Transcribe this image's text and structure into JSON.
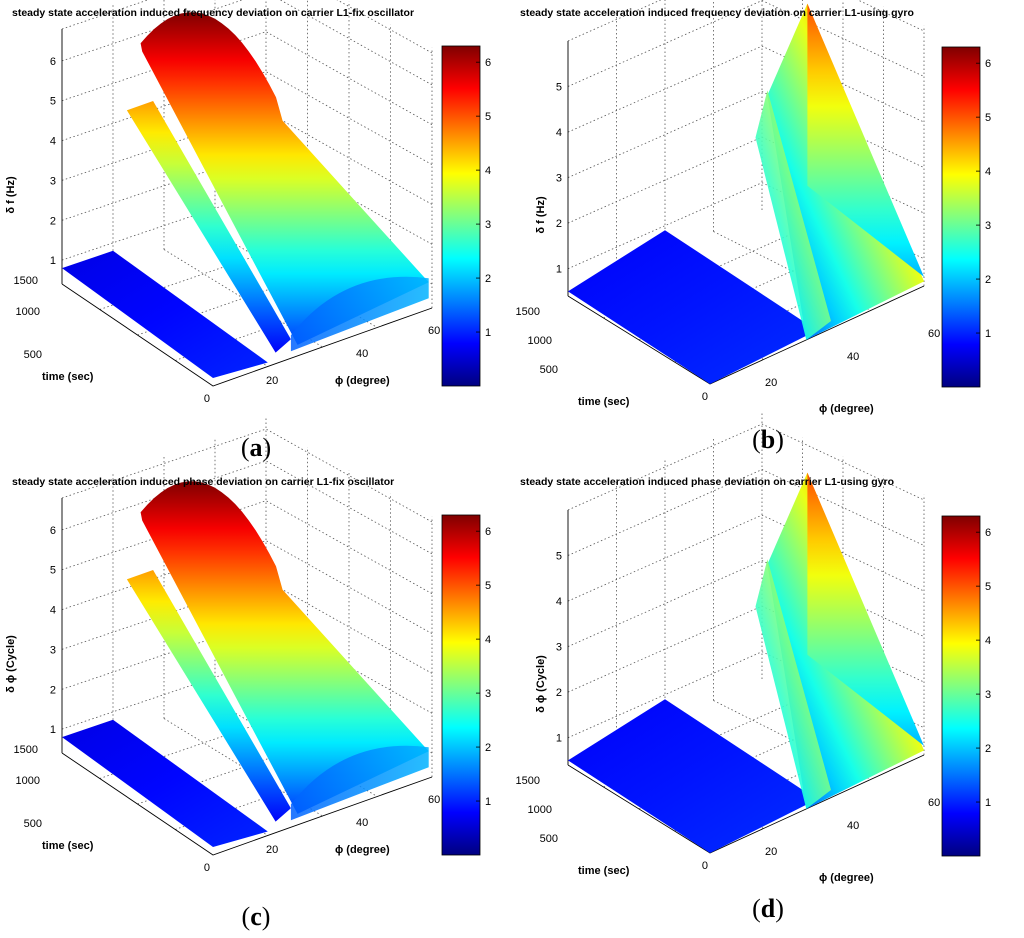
{
  "figure": {
    "panels": [
      {
        "id": "a",
        "label_prefix": "(",
        "label_letter": "a",
        "label_suffix": ")",
        "title": "steady state acceleration induced frequency deviation on carrier L1-fix oscillator",
        "zlabel": "δ f (Hz)",
        "ylabel": "time (sec)",
        "xlabel": "ϕ (degree)"
      },
      {
        "id": "b",
        "label_prefix": "(",
        "label_letter": "b",
        "label_suffix": ")",
        "title": "steady state acceleration induced frequency deviation on carrier L1-using gyro",
        "zlabel": "δ f (Hz)",
        "ylabel": "time (sec)",
        "xlabel": "ϕ (degree)"
      },
      {
        "id": "c",
        "label_prefix": "(",
        "label_letter": "c",
        "label_suffix": ")",
        "title": "steady state acceleration induced phase deviation on carrier L1-fix oscillator",
        "zlabel": "δ ϕ (Cycle)",
        "ylabel": "time (sec)",
        "xlabel": "ϕ (degree)"
      },
      {
        "id": "d",
        "label_prefix": "(",
        "label_letter": "d",
        "label_suffix": ")",
        "title": "steady state acceleration induced phase deviation on carrier L1-using gyro",
        "zlabel": "δ ϕ (Cycle)",
        "ylabel": "time (sec)",
        "xlabel": "ϕ (degree)"
      }
    ]
  },
  "chart_data": [
    {
      "type": "surface",
      "title": "steady state acceleration induced frequency deviation on carrier L1-fix oscillator",
      "xlabel": "ϕ (degree)",
      "ylabel": "time (sec)",
      "zlabel": "δ f (Hz)",
      "x_ticks": [
        20,
        40,
        60
      ],
      "y_ticks": [
        0,
        500,
        1000,
        1500
      ],
      "z_ticks": [
        1,
        2,
        3,
        4,
        5,
        6
      ],
      "colorbar_ticks": [
        1,
        2,
        3,
        4,
        5,
        6
      ],
      "colorbar_range": [
        0,
        6.3
      ],
      "colormap": "jet",
      "peak_value": 6.3
    },
    {
      "type": "surface",
      "title": "steady state acceleration induced frequency deviation on carrier L1-using gyro",
      "xlabel": "ϕ (degree)",
      "ylabel": "time (sec)",
      "zlabel": "δ f (Hz)",
      "x_ticks": [
        20,
        40,
        60
      ],
      "y_ticks": [
        0,
        500,
        1000,
        1500
      ],
      "z_ticks": [
        1,
        2,
        3,
        4,
        5
      ],
      "colorbar_ticks": [
        1,
        2,
        3,
        4,
        5,
        6
      ],
      "colorbar_range": [
        0,
        6.3
      ],
      "colormap": "jet",
      "peak_value": 5.4
    },
    {
      "type": "surface",
      "title": "steady state acceleration induced phase deviation on carrier L1-fix oscillator",
      "xlabel": "ϕ (degree)",
      "ylabel": "time (sec)",
      "zlabel": "δ ϕ (Cycle)",
      "x_ticks": [
        20,
        40,
        60
      ],
      "y_ticks": [
        0,
        500,
        1000,
        1500
      ],
      "z_ticks": [
        1,
        2,
        3,
        4,
        5,
        6
      ],
      "colorbar_ticks": [
        1,
        2,
        3,
        4,
        5,
        6
      ],
      "colorbar_range": [
        0,
        6.3
      ],
      "colormap": "jet",
      "peak_value": 6.3
    },
    {
      "type": "surface",
      "title": "steady state acceleration induced phase deviation on carrier L1-using gyro",
      "xlabel": "ϕ (degree)",
      "ylabel": "time (sec)",
      "zlabel": "δ ϕ (Cycle)",
      "x_ticks": [
        20,
        40,
        60
      ],
      "y_ticks": [
        0,
        500,
        1000,
        1500
      ],
      "z_ticks": [
        1,
        2,
        3,
        4,
        5
      ],
      "colorbar_ticks": [
        1,
        2,
        3,
        4,
        5,
        6
      ],
      "colorbar_range": [
        0,
        6.3
      ],
      "colormap": "jet",
      "peak_value": 5.4
    }
  ]
}
